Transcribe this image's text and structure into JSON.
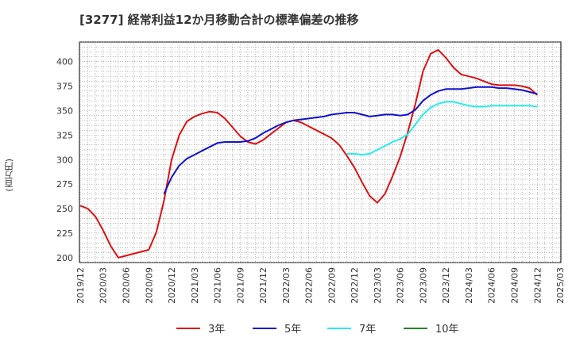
{
  "chart_data": {
    "type": "line",
    "title": "[3277]  経常利益12か月移動合計の標準偏差の推移",
    "ylabel": "(百万円)",
    "xlabel": "",
    "ylim": [
      195,
      420
    ],
    "yticks": [
      200,
      225,
      250,
      275,
      300,
      325,
      350,
      375,
      400
    ],
    "xticks": [
      "2019/12",
      "2020/03",
      "2020/06",
      "2020/09",
      "2020/12",
      "2021/03",
      "2021/06",
      "2021/09",
      "2021/12",
      "2022/03",
      "2022/06",
      "2022/09",
      "2022/12",
      "2023/03",
      "2023/06",
      "2023/09",
      "2023/12",
      "2024/03",
      "2024/06",
      "2024/09",
      "2024/12",
      "2025/03"
    ],
    "grid": true,
    "legend_position": "bottom",
    "series": [
      {
        "name": "3年",
        "color": "#dd1111",
        "points": [
          [
            "2019/12",
            253
          ],
          [
            "2020/01",
            250
          ],
          [
            "2020/02",
            242
          ],
          [
            "2020/03",
            228
          ],
          [
            "2020/04",
            212
          ],
          [
            "2020/05",
            200
          ],
          [
            "2020/06",
            202
          ],
          [
            "2020/07",
            204
          ],
          [
            "2020/08",
            206
          ],
          [
            "2020/09",
            208
          ],
          [
            "2020/10",
            226
          ],
          [
            "2020/11",
            258
          ],
          [
            "2020/12",
            300
          ],
          [
            "2021/01",
            325
          ],
          [
            "2021/02",
            339
          ],
          [
            "2021/03",
            344
          ],
          [
            "2021/04",
            347
          ],
          [
            "2021/05",
            349
          ],
          [
            "2021/06",
            348
          ],
          [
            "2021/07",
            342
          ],
          [
            "2021/08",
            333
          ],
          [
            "2021/09",
            324
          ],
          [
            "2021/10",
            318
          ],
          [
            "2021/11",
            316
          ],
          [
            "2021/12",
            320
          ],
          [
            "2022/01",
            326
          ],
          [
            "2022/02",
            332
          ],
          [
            "2022/03",
            338
          ],
          [
            "2022/04",
            340
          ],
          [
            "2022/05",
            338
          ],
          [
            "2022/06",
            334
          ],
          [
            "2022/07",
            330
          ],
          [
            "2022/08",
            326
          ],
          [
            "2022/09",
            322
          ],
          [
            "2022/10",
            315
          ],
          [
            "2022/11",
            304
          ],
          [
            "2022/12",
            292
          ],
          [
            "2023/01",
            277
          ],
          [
            "2023/02",
            263
          ],
          [
            "2023/03",
            256
          ],
          [
            "2023/04",
            265
          ],
          [
            "2023/05",
            283
          ],
          [
            "2023/06",
            303
          ],
          [
            "2023/07",
            328
          ],
          [
            "2023/08",
            357
          ],
          [
            "2023/09",
            390
          ],
          [
            "2023/10",
            408
          ],
          [
            "2023/11",
            412
          ],
          [
            "2023/12",
            404
          ],
          [
            "2024/01",
            394
          ],
          [
            "2024/02",
            387
          ],
          [
            "2024/03",
            385
          ],
          [
            "2024/04",
            383
          ],
          [
            "2024/05",
            380
          ],
          [
            "2024/06",
            377
          ],
          [
            "2024/07",
            376
          ],
          [
            "2024/08",
            376
          ],
          [
            "2024/09",
            376
          ],
          [
            "2024/10",
            375
          ],
          [
            "2024/11",
            373
          ],
          [
            "2024/12",
            366
          ]
        ]
      },
      {
        "name": "5年",
        "color": "#1111cc",
        "points": [
          [
            "2020/11",
            265
          ],
          [
            "2020/12",
            282
          ],
          [
            "2021/01",
            294
          ],
          [
            "2021/02",
            301
          ],
          [
            "2021/03",
            305
          ],
          [
            "2021/04",
            309
          ],
          [
            "2021/05",
            313
          ],
          [
            "2021/06",
            317
          ],
          [
            "2021/07",
            318
          ],
          [
            "2021/08",
            318
          ],
          [
            "2021/09",
            318
          ],
          [
            "2021/10",
            319
          ],
          [
            "2021/11",
            322
          ],
          [
            "2021/12",
            327
          ],
          [
            "2022/01",
            331
          ],
          [
            "2022/02",
            335
          ],
          [
            "2022/03",
            338
          ],
          [
            "2022/04",
            340
          ],
          [
            "2022/05",
            341
          ],
          [
            "2022/06",
            342
          ],
          [
            "2022/07",
            343
          ],
          [
            "2022/08",
            344
          ],
          [
            "2022/09",
            346
          ],
          [
            "2022/10",
            347
          ],
          [
            "2022/11",
            348
          ],
          [
            "2022/12",
            348
          ],
          [
            "2023/01",
            346
          ],
          [
            "2023/02",
            344
          ],
          [
            "2023/03",
            345
          ],
          [
            "2023/04",
            346
          ],
          [
            "2023/05",
            346
          ],
          [
            "2023/06",
            345
          ],
          [
            "2023/07",
            346
          ],
          [
            "2023/08",
            351
          ],
          [
            "2023/09",
            360
          ],
          [
            "2023/10",
            366
          ],
          [
            "2023/11",
            370
          ],
          [
            "2023/12",
            372
          ],
          [
            "2024/01",
            372
          ],
          [
            "2024/02",
            372
          ],
          [
            "2024/03",
            373
          ],
          [
            "2024/04",
            374
          ],
          [
            "2024/05",
            374
          ],
          [
            "2024/06",
            374
          ],
          [
            "2024/07",
            373
          ],
          [
            "2024/08",
            373
          ],
          [
            "2024/09",
            372
          ],
          [
            "2024/10",
            371
          ],
          [
            "2024/11",
            369
          ],
          [
            "2024/12",
            367
          ]
        ]
      },
      {
        "name": "7年",
        "color": "#22eeee",
        "points": [
          [
            "2022/11",
            306
          ],
          [
            "2022/12",
            306
          ],
          [
            "2023/01",
            305
          ],
          [
            "2023/02",
            306
          ],
          [
            "2023/03",
            310
          ],
          [
            "2023/04",
            314
          ],
          [
            "2023/05",
            318
          ],
          [
            "2023/06",
            321
          ],
          [
            "2023/07",
            326
          ],
          [
            "2023/08",
            336
          ],
          [
            "2023/09",
            346
          ],
          [
            "2023/10",
            353
          ],
          [
            "2023/11",
            357
          ],
          [
            "2023/12",
            359
          ],
          [
            "2024/01",
            359
          ],
          [
            "2024/02",
            357
          ],
          [
            "2024/03",
            355
          ],
          [
            "2024/04",
            354
          ],
          [
            "2024/05",
            354
          ],
          [
            "2024/06",
            355
          ],
          [
            "2024/07",
            355
          ],
          [
            "2024/08",
            355
          ],
          [
            "2024/09",
            355
          ],
          [
            "2024/10",
            355
          ],
          [
            "2024/11",
            355
          ],
          [
            "2024/12",
            354
          ]
        ]
      },
      {
        "name": "10年",
        "color": "#228822",
        "points": []
      }
    ]
  }
}
